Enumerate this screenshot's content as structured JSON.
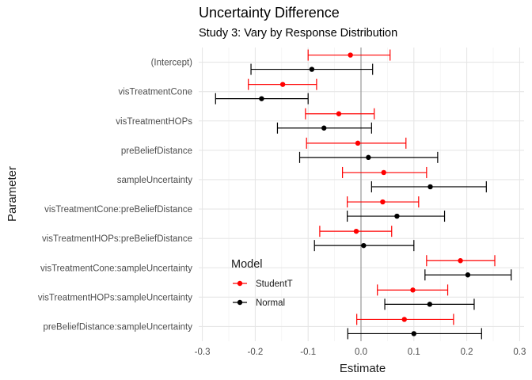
{
  "chart_data": {
    "type": "scatter",
    "title": "Uncertainty Difference",
    "subtitle": "Study 3: Vary by Response Distribution",
    "xlabel": "Estimate",
    "ylabel": "Parameter",
    "xlim": [
      -0.305,
      0.315
    ],
    "x_ticks": [
      -0.3,
      -0.2,
      -0.1,
      0.0,
      0.1,
      0.2,
      0.3
    ],
    "x_tick_labels": [
      "-0.3",
      "-0.2",
      "-0.1",
      "0.0",
      "0.1",
      "0.2",
      "0.3"
    ],
    "reference_line_x": 0,
    "grid": true,
    "categories": [
      "(Intercept)",
      "visTreatmentCone",
      "visTreatmentHOPs",
      "preBeliefDistance",
      "sampleUncertainty",
      "visTreatmentCone:preBeliefDistance",
      "visTreatmentHOPs:preBeliefDistance",
      "visTreatmentCone:sampleUncertainty",
      "visTreatmentHOPs:sampleUncertainty",
      "preBeliefDistance:sampleUncertainty"
    ],
    "legend": {
      "title": "Model",
      "position": "bottom-left-inside"
    },
    "series": [
      {
        "name": "StudentT",
        "color": "#ff0000",
        "estimate": [
          -0.02,
          -0.148,
          -0.042,
          -0.006,
          0.043,
          0.041,
          -0.009,
          0.188,
          0.098,
          0.082
        ],
        "lower": [
          -0.1,
          -0.213,
          -0.105,
          -0.103,
          -0.035,
          -0.026,
          -0.078,
          0.124,
          0.031,
          -0.008
        ],
        "upper": [
          0.055,
          -0.084,
          0.025,
          0.085,
          0.124,
          0.109,
          0.058,
          0.253,
          0.164,
          0.175
        ]
      },
      {
        "name": "Normal",
        "color": "#000000",
        "estimate": [
          -0.093,
          -0.188,
          -0.07,
          0.014,
          0.131,
          0.068,
          0.005,
          0.202,
          0.13,
          0.1
        ],
        "lower": [
          -0.208,
          -0.275,
          -0.158,
          -0.116,
          0.02,
          -0.026,
          -0.088,
          0.121,
          0.045,
          -0.025
        ],
        "upper": [
          0.022,
          -0.1,
          0.02,
          0.145,
          0.237,
          0.158,
          0.1,
          0.284,
          0.214,
          0.228
        ]
      }
    ]
  }
}
